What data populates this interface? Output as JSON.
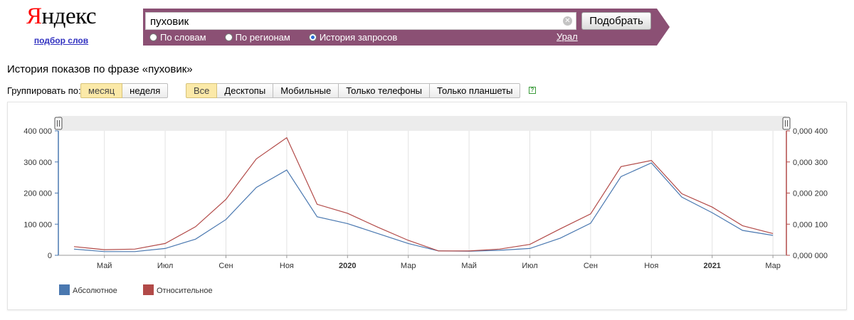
{
  "logo": {
    "text_first": "Я",
    "text_rest": "ндекс",
    "subtitle": "подбор слов"
  },
  "search": {
    "query": "пуховик",
    "submit_label": "Подобрать",
    "clear_glyph": "✕",
    "modes": [
      {
        "label": "По словам",
        "checked": false
      },
      {
        "label": "По регионам",
        "checked": false
      },
      {
        "label": "История запросов",
        "checked": true
      }
    ],
    "region": "Урал"
  },
  "page_title": "История показов по фразе «пуховик»",
  "grouping": {
    "label": "Группировать по:",
    "options": [
      {
        "label": "месяц",
        "active": true
      },
      {
        "label": "неделя",
        "active": false
      }
    ]
  },
  "devices": [
    {
      "label": "Все",
      "active": true
    },
    {
      "label": "Десктопы",
      "active": false
    },
    {
      "label": "Мобильные",
      "active": false
    },
    {
      "label": "Только телефоны",
      "active": false
    },
    {
      "label": "Только планшеты",
      "active": false
    }
  ],
  "help_glyph": "?",
  "colors": {
    "absolute": "#4a78b0",
    "relative": "#b24a48",
    "banner": "#8b5074"
  },
  "chart_data": {
    "type": "line",
    "x": [
      "2019-04",
      "2019-05",
      "2019-06",
      "2019-07",
      "2019-08",
      "2019-09",
      "2019-10",
      "2019-11",
      "2019-12",
      "2020-01",
      "2020-02",
      "2020-03",
      "2020-04",
      "2020-05",
      "2020-06",
      "2020-07",
      "2020-08",
      "2020-09",
      "2020-10",
      "2020-11",
      "2020-12",
      "2021-01",
      "2021-02",
      "2021-03"
    ],
    "tick_labels": [
      {
        "x": "2019-05",
        "label": "Май",
        "bold": false
      },
      {
        "x": "2019-07",
        "label": "Июл",
        "bold": false
      },
      {
        "x": "2019-09",
        "label": "Сен",
        "bold": false
      },
      {
        "x": "2019-11",
        "label": "Ноя",
        "bold": false
      },
      {
        "x": "2020-01",
        "label": "2020",
        "bold": true
      },
      {
        "x": "2020-03",
        "label": "Мар",
        "bold": false
      },
      {
        "x": "2020-05",
        "label": "Май",
        "bold": false
      },
      {
        "x": "2020-07",
        "label": "Июл",
        "bold": false
      },
      {
        "x": "2020-09",
        "label": "Сен",
        "bold": false
      },
      {
        "x": "2020-11",
        "label": "Ноя",
        "bold": false
      },
      {
        "x": "2021-01",
        "label": "2021",
        "bold": true
      },
      {
        "x": "2021-03",
        "label": "Мар",
        "bold": false
      }
    ],
    "y_left_ticks": [
      "0",
      "100 000",
      "200 000",
      "300 000",
      "400 000"
    ],
    "y_left_range": [
      0,
      400000
    ],
    "y_right_ticks": [
      "0,000 000",
      "0,000 100",
      "0,000 200",
      "0,000 300",
      "0,000 400"
    ],
    "y_right_range": [
      0,
      0.0004
    ],
    "grid": true,
    "legend_position": "bottom-left",
    "series": [
      {
        "name": "Абсолютное",
        "axis": "left",
        "values": [
          20000,
          12000,
          12000,
          22000,
          52000,
          115000,
          218000,
          274000,
          124000,
          102000,
          70000,
          38000,
          14000,
          13000,
          16000,
          22000,
          55000,
          103000,
          253000,
          297000,
          187000,
          137000,
          80000,
          64000
        ]
      },
      {
        "name": "Относительное",
        "axis": "right",
        "values": [
          2.8e-05,
          1.8e-05,
          2e-05,
          3.8e-05,
          9.2e-05,
          0.00018,
          0.00031,
          0.000378,
          0.000164,
          0.000135,
          9e-05,
          4.8e-05,
          1.4e-05,
          1.4e-05,
          2e-05,
          3.5e-05,
          8.5e-05,
          0.000133,
          0.000285,
          0.000305,
          0.000198,
          0.000155,
          9.5e-05,
          7e-05
        ]
      }
    ]
  }
}
